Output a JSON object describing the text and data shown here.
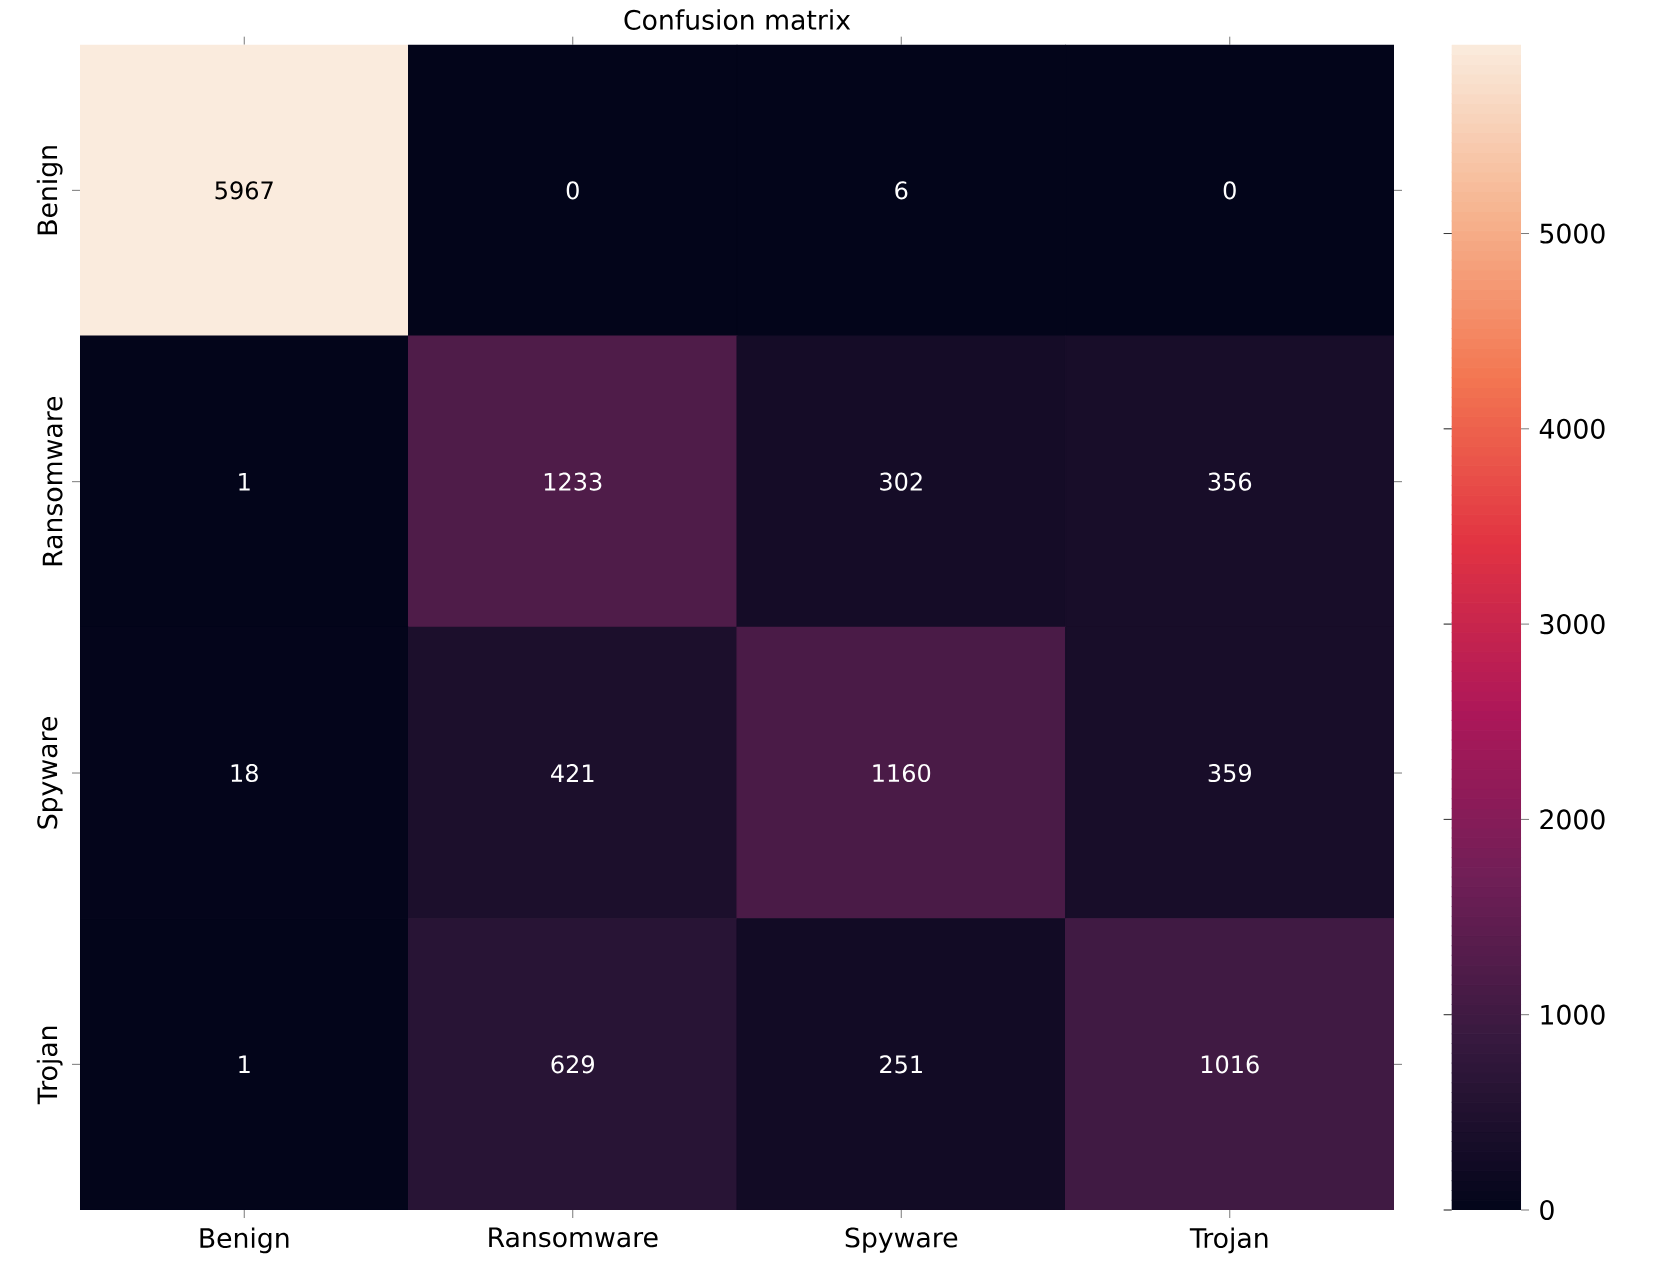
{
  "chart_data": {
    "type": "heatmap",
    "title": "Confusion matrix",
    "categories": [
      "Benign",
      "Ransomware",
      "Spyware",
      "Trojan"
    ],
    "y_categories": [
      "Benign",
      "Ransomware",
      "Spyware",
      "Trojan"
    ],
    "cells": [
      [
        5967,
        0,
        6,
        0
      ],
      [
        1,
        1233,
        302,
        356
      ],
      [
        18,
        421,
        1160,
        359
      ],
      [
        1,
        629,
        251,
        1016
      ]
    ],
    "clim": [
      0,
      5967
    ],
    "cticks": [
      0,
      1000,
      2000,
      3000,
      4000,
      5000
    ],
    "data_labels": true
  }
}
